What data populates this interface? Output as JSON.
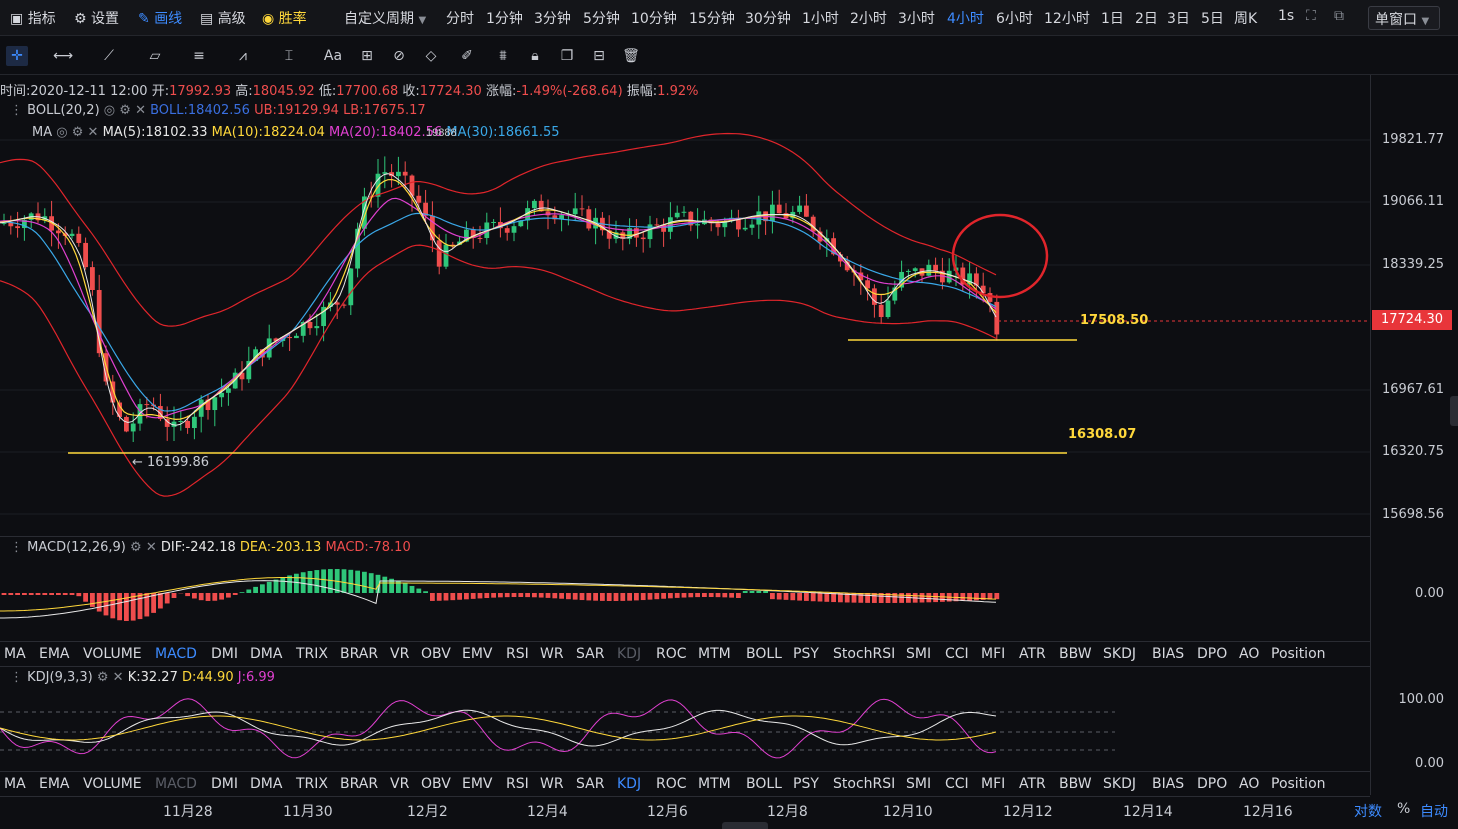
{
  "topbar": {
    "indicators_label": "指标",
    "settings_label": "设置",
    "drawing_label": "画线",
    "advanced_label": "高级",
    "winrate_label": "胜率",
    "custom_period_label": "自定义周期",
    "periods": [
      "分时",
      "1分钟",
      "3分钟",
      "5分钟",
      "10分钟",
      "15分钟",
      "30分钟",
      "1小时",
      "2小时",
      "3小时",
      "4小时",
      "6小时",
      "12小时",
      "1日",
      "2日",
      "3日",
      "5日",
      "周K",
      "1s"
    ],
    "active_period": "4小时",
    "window_mode": "单窗口"
  },
  "infoline": {
    "time_label": "时间:",
    "time": "2020-12-11 12:00",
    "open_label": "开:",
    "open": "17992.93",
    "high_label": "高:",
    "high": "18045.92",
    "low_label": "低:",
    "low": "17700.68",
    "close_label": "收:",
    "close": "17724.30",
    "change_label": "涨幅:",
    "change": "-1.49%(-268.64)",
    "amplitude_label": "振幅:",
    "amplitude": "1.92%"
  },
  "boll_legend": {
    "name": "BOLL(20,2)",
    "boll": "BOLL:18402.56",
    "ub": "UB:19129.94",
    "lb": "LB:17675.17"
  },
  "ma_legend": {
    "name": "MA",
    "ma5": "MA(5):18102.33",
    "ma10": "MA(10):18224.04",
    "ma20": "MA(20):18402.56",
    "ma30": "MA(30):18661.55",
    "overlap": "19888"
  },
  "price_axis": [
    "19821.77",
    "19066.11",
    "18339.25",
    "16967.61",
    "16320.75",
    "15698.56"
  ],
  "current_price": "17724.30",
  "annotations": {
    "level_high": "17508.50",
    "level_low": "16308.07",
    "low_marker": "← 16199.86"
  },
  "macd_legend": {
    "name": "MACD(12,26,9)",
    "dif": "DIF:-242.18",
    "dea": "DEA:-203.13",
    "macd": "MACD:-78.10",
    "axis_zero": "0.00"
  },
  "indicator_tabs_1": [
    "MA",
    "EMA",
    "VOLUME",
    "MACD",
    "DMI",
    "DMA",
    "TRIX",
    "BRAR",
    "VR",
    "OBV",
    "EMV",
    "RSI",
    "WR",
    "SAR",
    "KDJ",
    "ROC",
    "MTM",
    "BOLL",
    "PSY",
    "StochRSI",
    "SMI",
    "CCI",
    "MFI",
    "ATR",
    "BBW",
    "SKDJ",
    "BIAS",
    "DPO",
    "AO",
    "Position"
  ],
  "indicator_tabs_1_active": "MACD",
  "indicator_tabs_1_dim": "KDJ",
  "kdj_legend": {
    "name": "KDJ(9,3,3)",
    "k": "K:32.27",
    "d": "D:44.90",
    "j": "J:6.99",
    "axis_100": "100.00",
    "axis_0": "0.00"
  },
  "indicator_tabs_2": [
    "MA",
    "EMA",
    "VOLUME",
    "MACD",
    "DMI",
    "DMA",
    "TRIX",
    "BRAR",
    "VR",
    "OBV",
    "EMV",
    "RSI",
    "WR",
    "SAR",
    "KDJ",
    "ROC",
    "MTM",
    "BOLL",
    "PSY",
    "StochRSI",
    "SMI",
    "CCI",
    "MFI",
    "ATR",
    "BBW",
    "SKDJ",
    "BIAS",
    "DPO",
    "AO",
    "Position"
  ],
  "indicator_tabs_2_active": "KDJ",
  "indicator_tabs_2_dim": "MACD",
  "dates": [
    "11月28",
    "11月30",
    "12月2",
    "12月4",
    "12月6",
    "12月8",
    "12月10",
    "12月12",
    "12月14",
    "12月16"
  ],
  "bottom_right": {
    "log": "对数",
    "percent": "%",
    "auto": "自动"
  },
  "colors": {
    "up": "#2fc77a",
    "down": "#ef4d4d",
    "accent": "#3d8bff",
    "boll_band": "#e0252b",
    "ma5": "#e8e8e8",
    "ma10": "#ffd83b",
    "ma20": "#e040d0",
    "ma30": "#3aa8e8",
    "highlight_circle": "#e0252b"
  }
}
